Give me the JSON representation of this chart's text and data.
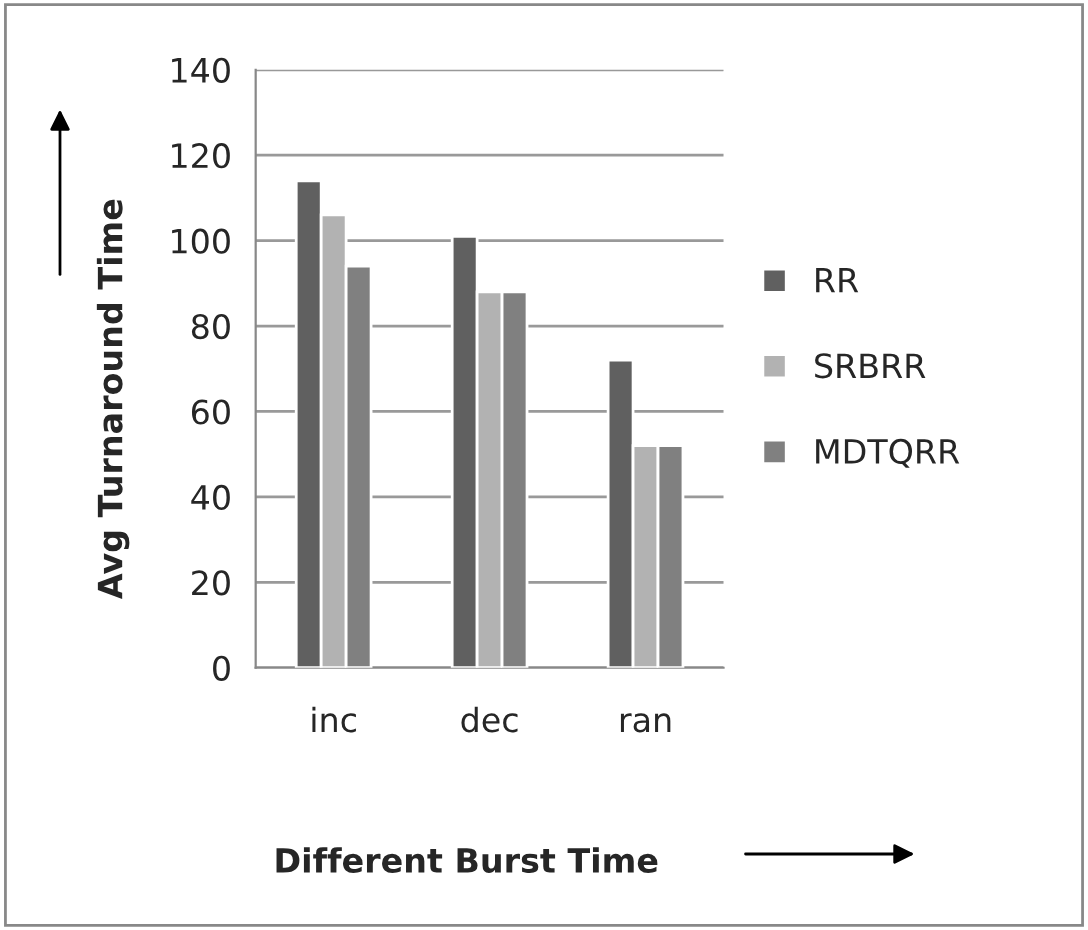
{
  "chart_data": {
    "type": "bar",
    "xlabel": "Different Burst Time",
    "ylabel": "Avg Turnaround Time",
    "categories": [
      "inc",
      "dec",
      "ran"
    ],
    "series": [
      {
        "name": "RR",
        "color": "#606060",
        "values": [
          114,
          101,
          72
        ]
      },
      {
        "name": "SRBRR",
        "color": "#b2b2b2",
        "values": [
          106,
          88,
          52
        ]
      },
      {
        "name": "MDTQRR",
        "color": "#808080",
        "values": [
          94,
          88,
          52
        ]
      }
    ],
    "ylim": [
      0,
      140
    ],
    "yticks": [
      0,
      20,
      40,
      60,
      80,
      100,
      120,
      140
    ],
    "grid": "y",
    "legend": "right"
  }
}
